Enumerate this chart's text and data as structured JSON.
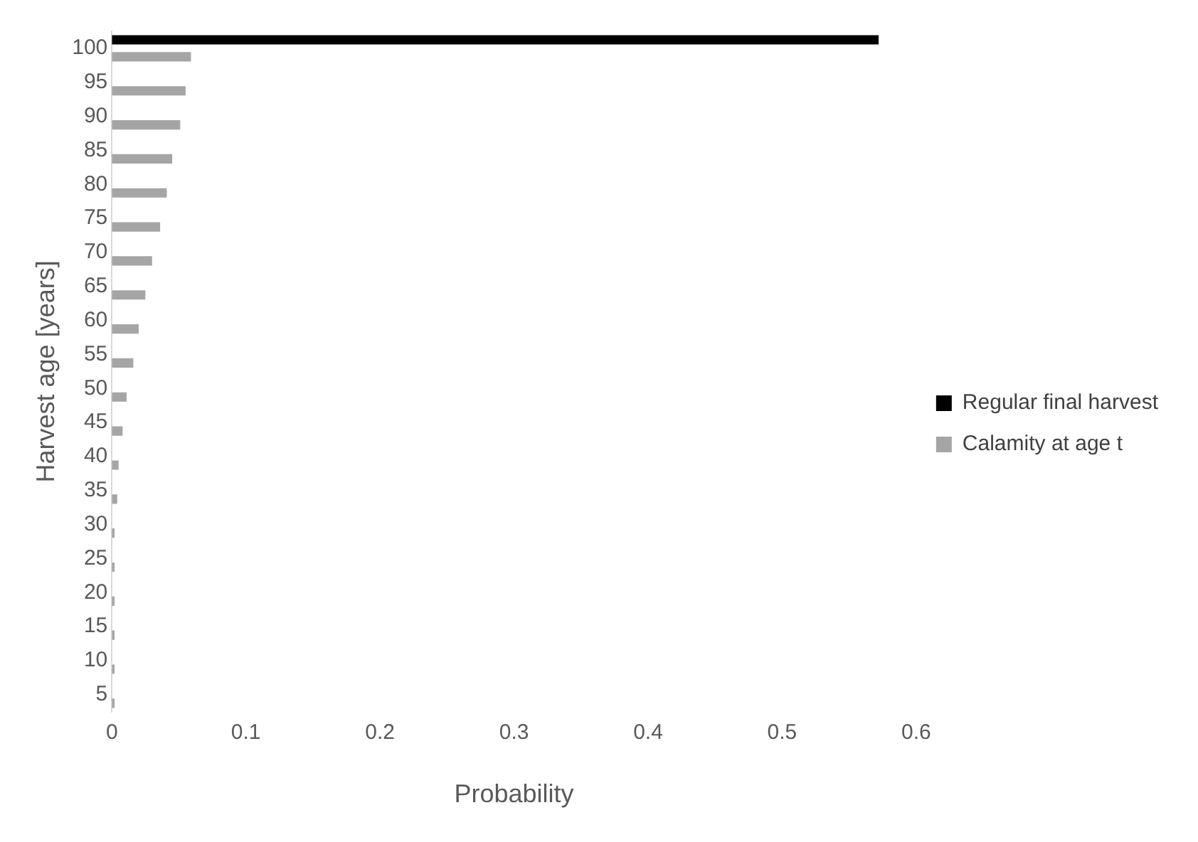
{
  "chart_data": {
    "type": "bar",
    "orientation": "horizontal",
    "xlabel": "Probability",
    "ylabel": "Harvest age [years]",
    "categories": [
      "100",
      "95",
      "90",
      "85",
      "80",
      "75",
      "70",
      "65",
      "60",
      "55",
      "50",
      "45",
      "40",
      "35",
      "30",
      "25",
      "20",
      "15",
      "10",
      "5"
    ],
    "series": [
      {
        "name": "Regular final harvest",
        "color": "#000000",
        "values": [
          0.572,
          null,
          null,
          null,
          null,
          null,
          null,
          null,
          null,
          null,
          null,
          null,
          null,
          null,
          null,
          null,
          null,
          null,
          null,
          null
        ]
      },
      {
        "name": "Calamity at age t",
        "color": "#a5a5a5",
        "values": [
          0.059,
          0.055,
          0.051,
          0.045,
          0.041,
          0.036,
          0.03,
          0.025,
          0.02,
          0.016,
          0.011,
          0.008,
          0.005,
          0.004,
          0.002,
          0.002,
          0.002,
          0.002,
          0.002,
          0.002
        ]
      }
    ],
    "xlim": [
      0,
      0.6
    ],
    "xticks": [
      0,
      0.1,
      0.2,
      0.3,
      0.4,
      0.5,
      0.6
    ],
    "grid": false,
    "legend": "right"
  }
}
